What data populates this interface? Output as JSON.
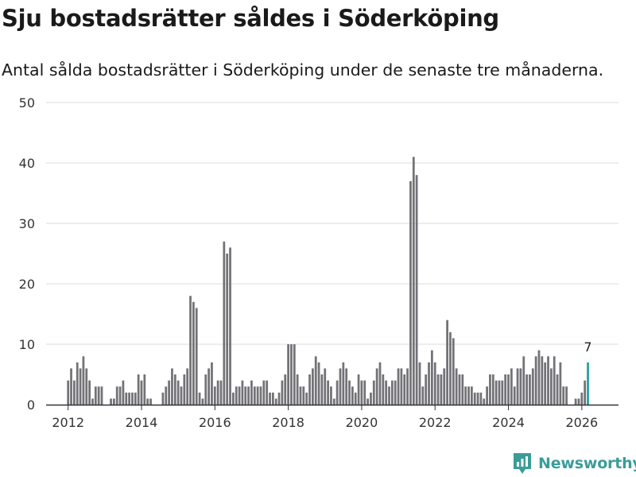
{
  "title": "Sju bostadsrätter såldes i Söderköping",
  "subtitle": "Antal sålda bostadsrätter i Söderköping under de senaste tre månaderna.",
  "brand": {
    "name": "Newsworthy",
    "icon": "newsworthy-logo-icon"
  },
  "colors": {
    "bar": "#737277",
    "highlight": "#2a9f99",
    "grid": "#dddddd",
    "text": "#333333",
    "brand": "#3a9d9a"
  },
  "chart_data": {
    "type": "bar",
    "xlabel": "",
    "ylabel": "",
    "ylim": [
      0,
      50
    ],
    "yticks": [
      0,
      10,
      20,
      30,
      40,
      50
    ],
    "xlim": [
      2011.4,
      2027.0
    ],
    "xticks": [
      2012,
      2014,
      2016,
      2018,
      2020,
      2022,
      2024,
      2026
    ],
    "grid": true,
    "start": 2012.0,
    "step_years": 0.08333,
    "highlight_label": "7",
    "values": [
      4,
      6,
      4,
      7,
      6,
      8,
      6,
      4,
      1,
      3,
      3,
      3,
      0,
      0,
      1,
      1,
      3,
      3,
      4,
      2,
      2,
      2,
      2,
      5,
      4,
      5,
      1,
      1,
      0,
      0,
      0,
      2,
      3,
      4,
      6,
      5,
      4,
      3,
      5,
      6,
      18,
      17,
      16,
      2,
      1,
      5,
      6,
      7,
      3,
      4,
      4,
      27,
      25,
      26,
      2,
      3,
      3,
      4,
      3,
      3,
      4,
      3,
      3,
      3,
      4,
      4,
      2,
      2,
      1,
      2,
      4,
      5,
      10,
      10,
      10,
      5,
      3,
      3,
      2,
      5,
      6,
      8,
      7,
      5,
      6,
      4,
      3,
      1,
      4,
      6,
      7,
      6,
      4,
      3,
      2,
      5,
      4,
      4,
      1,
      2,
      4,
      6,
      7,
      5,
      4,
      3,
      4,
      4,
      6,
      6,
      5,
      6,
      37,
      41,
      38,
      7,
      3,
      5,
      7,
      9,
      7,
      5,
      5,
      6,
      14,
      12,
      11,
      6,
      5,
      5,
      3,
      3,
      3,
      2,
      2,
      2,
      1,
      3,
      5,
      5,
      4,
      4,
      4,
      5,
      5,
      6,
      3,
      6,
      6,
      8,
      5,
      5,
      6,
      8,
      9,
      8,
      7,
      8,
      6,
      8,
      5,
      7,
      3,
      3,
      0,
      0,
      1,
      1,
      2,
      4,
      7
    ]
  }
}
